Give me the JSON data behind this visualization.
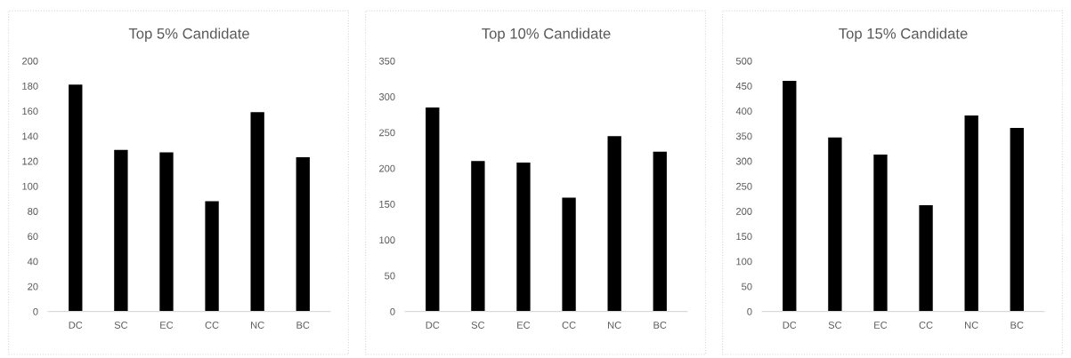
{
  "chart_data": [
    {
      "type": "bar",
      "title": "Top 5% Candidate",
      "categories": [
        "DC",
        "SC",
        "EC",
        "CC",
        "NC",
        "BC"
      ],
      "values": [
        181,
        129,
        127,
        88,
        159,
        123
      ],
      "color": "#000000",
      "ylim": [
        0,
        200
      ],
      "yticks": [
        0,
        20,
        40,
        60,
        80,
        100,
        120,
        140,
        160,
        180,
        200
      ],
      "grid": false
    },
    {
      "type": "bar",
      "title": "Top 10% Candidate",
      "categories": [
        "DC",
        "SC",
        "EC",
        "CC",
        "NC",
        "BC"
      ],
      "values": [
        285,
        210,
        208,
        159,
        245,
        223
      ],
      "color": "#000000",
      "ylim": [
        0,
        350
      ],
      "yticks": [
        0,
        50,
        100,
        150,
        200,
        250,
        300,
        350
      ],
      "grid": false
    },
    {
      "type": "bar",
      "title": "Top 15% Candidate",
      "categories": [
        "DC",
        "SC",
        "EC",
        "CC",
        "NC",
        "BC"
      ],
      "values": [
        460,
        347,
        313,
        212,
        391,
        366
      ],
      "color": "#000000",
      "ylim": [
        0,
        500
      ],
      "yticks": [
        0,
        50,
        100,
        150,
        200,
        250,
        300,
        350,
        400,
        450,
        500
      ],
      "grid": false
    }
  ]
}
